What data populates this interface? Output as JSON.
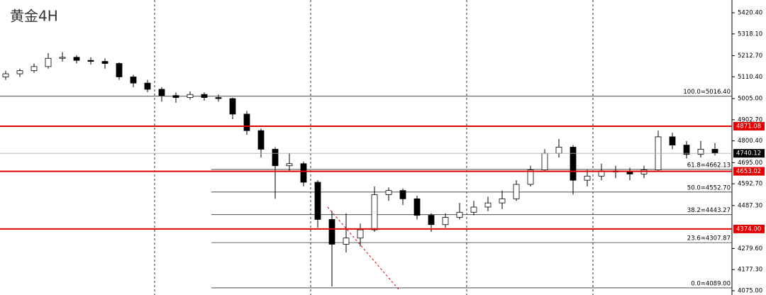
{
  "chart_data": {
    "type": "candlestick",
    "title": "黄金4H",
    "candles": [
      [
        5110,
        5140,
        5095,
        5125
      ],
      [
        5125,
        5150,
        5110,
        5140
      ],
      [
        5140,
        5175,
        5130,
        5160
      ],
      [
        5160,
        5225,
        5150,
        5200
      ],
      [
        5200,
        5230,
        5185,
        5205
      ],
      [
        5205,
        5215,
        5175,
        5190
      ],
      [
        5190,
        5205,
        5170,
        5185
      ],
      [
        5185,
        5200,
        5150,
        5175
      ],
      [
        5175,
        5180,
        5095,
        5110
      ],
      [
        5110,
        5120,
        5060,
        5080
      ],
      [
        5080,
        5095,
        5035,
        5050
      ],
      [
        5050,
        5060,
        4990,
        5020
      ],
      [
        5020,
        5035,
        4985,
        5010
      ],
      [
        5010,
        5040,
        5000,
        5025
      ],
      [
        5025,
        5035,
        4995,
        5010
      ],
      [
        5010,
        5025,
        4990,
        5005
      ],
      [
        5005,
        5010,
        4905,
        4930
      ],
      [
        4930,
        4945,
        4830,
        4850
      ],
      [
        4850,
        4860,
        4720,
        4760
      ],
      [
        4760,
        4770,
        4520,
        4680
      ],
      [
        4680,
        4740,
        4650,
        4690
      ],
      [
        4690,
        4700,
        4580,
        4600
      ],
      [
        4600,
        4610,
        4380,
        4420
      ],
      [
        4420,
        4460,
        4095,
        4300
      ],
      [
        4300,
        4450,
        4260,
        4330
      ],
      [
        4330,
        4400,
        4290,
        4370
      ],
      [
        4370,
        4580,
        4360,
        4540
      ],
      [
        4540,
        4575,
        4510,
        4560
      ],
      [
        4560,
        4570,
        4490,
        4520
      ],
      [
        4520,
        4535,
        4420,
        4440
      ],
      [
        4440,
        4450,
        4360,
        4395
      ],
      [
        4395,
        4450,
        4380,
        4430
      ],
      [
        4430,
        4500,
        4420,
        4455
      ],
      [
        4455,
        4510,
        4440,
        4480
      ],
      [
        4480,
        4530,
        4460,
        4500
      ],
      [
        4500,
        4560,
        4470,
        4520
      ],
      [
        4520,
        4610,
        4510,
        4590
      ],
      [
        4590,
        4680,
        4580,
        4660
      ],
      [
        4660,
        4760,
        4650,
        4740
      ],
      [
        4740,
        4810,
        4720,
        4770
      ],
      [
        4770,
        4780,
        4540,
        4610
      ],
      [
        4610,
        4660,
        4580,
        4630
      ],
      [
        4630,
        4690,
        4610,
        4655
      ],
      [
        4655,
        4680,
        4620,
        4650
      ],
      [
        4650,
        4670,
        4610,
        4640
      ],
      [
        4640,
        4680,
        4620,
        4660
      ],
      [
        4660,
        4850,
        4650,
        4820
      ],
      [
        4820,
        4840,
        4760,
        4780
      ],
      [
        4780,
        4800,
        4715,
        4735
      ],
      [
        4735,
        4800,
        4720,
        4760
      ],
      [
        4760,
        4790,
        4730,
        4740.12
      ]
    ],
    "up_color": "#ffffff",
    "down_color": "#000000",
    "ylim": [
      4075,
      5420.4
    ],
    "yticks": [
      {
        "value": 5420.4,
        "label": "5420.40"
      },
      {
        "value": 5318.1,
        "label": "5318.10"
      },
      {
        "value": 5212.7,
        "label": "5212.70"
      },
      {
        "value": 5110.4,
        "label": "5110.40"
      },
      {
        "value": 5005,
        "label": "5005.00"
      },
      {
        "value": 4902.7,
        "label": "4902.70"
      },
      {
        "value": 4800.4,
        "label": "4800.40"
      },
      {
        "value": 4695,
        "label": "4695.00"
      },
      {
        "value": 4592.7,
        "label": "4592.70"
      },
      {
        "value": 4487.3,
        "label": "4487.30"
      },
      {
        "value": 4279.6,
        "label": "4279.60"
      },
      {
        "value": 4177.3,
        "label": "4177.30"
      },
      {
        "value": 4075,
        "label": "4075.00"
      }
    ],
    "fib_levels": [
      {
        "value": 5016.4,
        "label": "100.0=5016.40"
      },
      {
        "value": 4662.13,
        "label": "61.8=4662.13"
      },
      {
        "value": 4552.7,
        "label": "50.0=4552.70"
      },
      {
        "value": 4443.27,
        "label": "38.2=4443.27"
      },
      {
        "value": 4307.87,
        "label": "23.6=4307.87"
      },
      {
        "value": 4089,
        "label": "0.0=4089.00"
      }
    ],
    "levels": [
      {
        "value": 4871.08,
        "label": "4871.08"
      },
      {
        "value": 4653.02,
        "label": "4653.02"
      },
      {
        "value": 4374,
        "label": "4374.00"
      }
    ],
    "level_color": "#e00000",
    "current_price": {
      "value": 4740.12,
      "label": "4740.12"
    }
  }
}
